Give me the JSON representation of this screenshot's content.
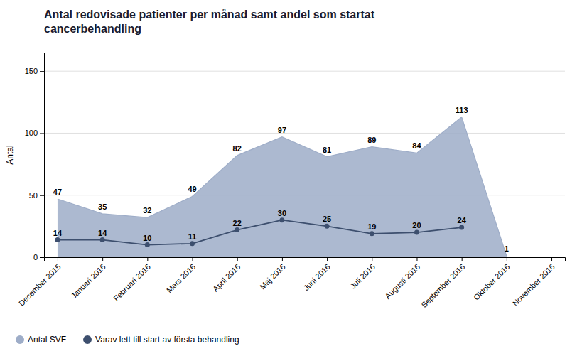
{
  "chart_data": {
    "type": "line",
    "title": "Antal redovisade patienter per månad samt andel som startat\ncancerbehandling",
    "ylabel": "Antal",
    "categories": [
      "December 2015",
      "Januari 2016",
      "Februari 2016",
      "Mars 2016",
      "April 2016",
      "Maj 2016",
      "Juni 2016",
      "Juli 2016",
      "Augusti 2016",
      "September 2016",
      "Oktober 2016",
      "November 2016"
    ],
    "series": [
      {
        "name": "Antal SVF",
        "type": "area",
        "color": "#9eadc8",
        "values": [
          47,
          35,
          32,
          49,
          82,
          97,
          81,
          89,
          84,
          113,
          1,
          null
        ]
      },
      {
        "name": "Varav lett till start av första behandling",
        "type": "line",
        "color": "#3d4f6e",
        "marker": "circle",
        "values": [
          14,
          14,
          10,
          11,
          22,
          30,
          25,
          19,
          20,
          24,
          null,
          null
        ]
      }
    ],
    "ylim": [
      0,
      165
    ],
    "yticks": [
      0,
      50,
      100,
      150
    ],
    "grid": true,
    "legend": "bottom",
    "data_labels": true
  }
}
